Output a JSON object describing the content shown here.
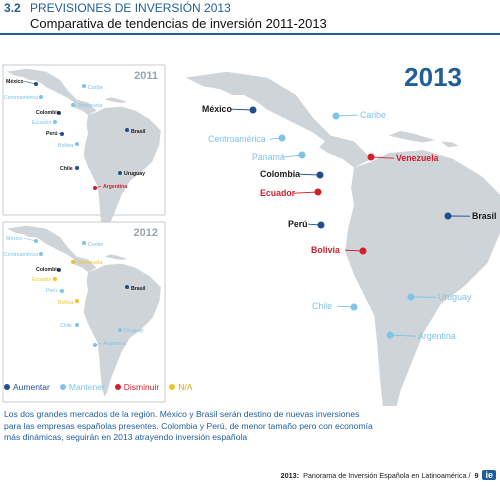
{
  "header": {
    "section_number": "3.2",
    "section_title": "PREVISIONES DE INVERSIÓN 2013",
    "title": "Comparativa de tendencias de inversión 2011-2013"
  },
  "colors": {
    "aumentar": "#1f4f8f",
    "mantener": "#7fc3ea",
    "disminuir": "#d0202f",
    "na": "#f2c12e",
    "land": "#cfd4d8",
    "sea": "#ffffff",
    "accent": "#1f5e9a"
  },
  "maps": {
    "map_2011": {
      "year": "2011",
      "countries": [
        {
          "name": "México",
          "status": "aumentar"
        },
        {
          "name": "Caribe",
          "status": "mantener"
        },
        {
          "name": "Centroamérica",
          "status": "mantener"
        },
        {
          "name": "Venezuela",
          "status": "mantener"
        },
        {
          "name": "Colombia",
          "status": "aumentar"
        },
        {
          "name": "Ecuador",
          "status": "mantener"
        },
        {
          "name": "Perú",
          "status": "aumentar"
        },
        {
          "name": "Brasil",
          "status": "aumentar"
        },
        {
          "name": "Bolivia",
          "status": "mantener"
        },
        {
          "name": "Chile",
          "status": "aumentar"
        },
        {
          "name": "Uruguay",
          "status": "aumentar"
        },
        {
          "name": "Argentina",
          "status": "disminuir"
        }
      ]
    },
    "map_2012": {
      "year": "2012",
      "countries": [
        {
          "name": "México",
          "status": "mantener"
        },
        {
          "name": "Caribe",
          "status": "mantener"
        },
        {
          "name": "Centroamérica",
          "status": "mantener"
        },
        {
          "name": "Venezuela",
          "status": "na"
        },
        {
          "name": "Colombia",
          "status": "aumentar"
        },
        {
          "name": "Ecuador",
          "status": "na"
        },
        {
          "name": "Perú",
          "status": "mantener"
        },
        {
          "name": "Brasil",
          "status": "aumentar"
        },
        {
          "name": "Bolivia",
          "status": "na"
        },
        {
          "name": "Chile",
          "status": "mantener"
        },
        {
          "name": "Uruguay",
          "status": "mantener"
        },
        {
          "name": "Argentina",
          "status": "mantener"
        }
      ]
    },
    "map_2013": {
      "year": "2013",
      "countries": [
        {
          "name": "México",
          "status": "aumentar"
        },
        {
          "name": "Caribe",
          "status": "mantener"
        },
        {
          "name": "Centroamérica",
          "status": "mantener"
        },
        {
          "name": "Panamá",
          "status": "mantener"
        },
        {
          "name": "Venezuela",
          "status": "disminuir"
        },
        {
          "name": "Colombia",
          "status": "aumentar"
        },
        {
          "name": "Ecuador",
          "status": "disminuir"
        },
        {
          "name": "Perú",
          "status": "aumentar"
        },
        {
          "name": "Brasil",
          "status": "aumentar"
        },
        {
          "name": "Bolivia",
          "status": "disminuir"
        },
        {
          "name": "Chile",
          "status": "mantener"
        },
        {
          "name": "Uruguay",
          "status": "mantener"
        },
        {
          "name": "Argentina",
          "status": "mantener"
        }
      ]
    }
  },
  "legend": [
    {
      "key": "aumentar",
      "label": "Aumentar"
    },
    {
      "key": "mantener",
      "label": "Mantener"
    },
    {
      "key": "disminuir",
      "label": "Disminuir"
    },
    {
      "key": "na",
      "label": "N/A"
    }
  ],
  "body_text": [
    "Los dos grandes mercados de la región. México y Brasil serán destino de nuevas inversiones",
    "para las empresas españolas presentes. Colombia y Perú, de menor tamaño pero con economía",
    "más dinámicas, seguirán en 2013 atrayendo inversión española"
  ],
  "footer": {
    "year": "2013:",
    "text": "Panorama de Inversión Española en Latinoamérica /",
    "page": "9",
    "logo": "ie"
  }
}
